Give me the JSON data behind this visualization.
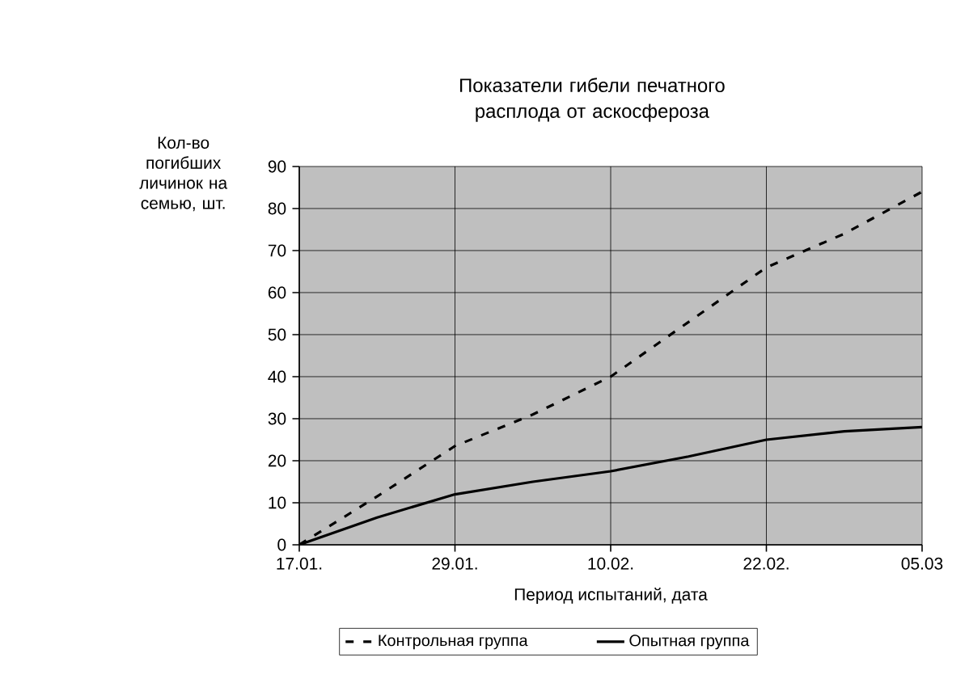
{
  "chart_data": {
    "type": "line",
    "title": "Показатели гибели печатного расплода от аскосфероза",
    "xlabel": "Период испытаний, дата",
    "ylabel": "Кол-во погибших личинок на семью, шт.",
    "categories": [
      "17.01.",
      null,
      "29.01.",
      null,
      "10.02.",
      null,
      "22.02.",
      null,
      "05.03"
    ],
    "series": [
      {
        "name": "Контрольная группа",
        "color": "#000000",
        "line_style": "dashed",
        "values": [
          0,
          11.5,
          23.5,
          31,
          40,
          53,
          66,
          74,
          84
        ]
      },
      {
        "name": "Опытная группа",
        "color": "#000000",
        "line_style": "solid",
        "values": [
          0,
          6.5,
          12,
          15,
          17.5,
          21,
          25,
          27,
          28
        ]
      }
    ],
    "ylim": [
      0,
      90
    ],
    "yticks": [
      0,
      10,
      20,
      30,
      40,
      50,
      60,
      70,
      80,
      90
    ],
    "grid": true,
    "legend": "bottom",
    "marker": "none"
  }
}
